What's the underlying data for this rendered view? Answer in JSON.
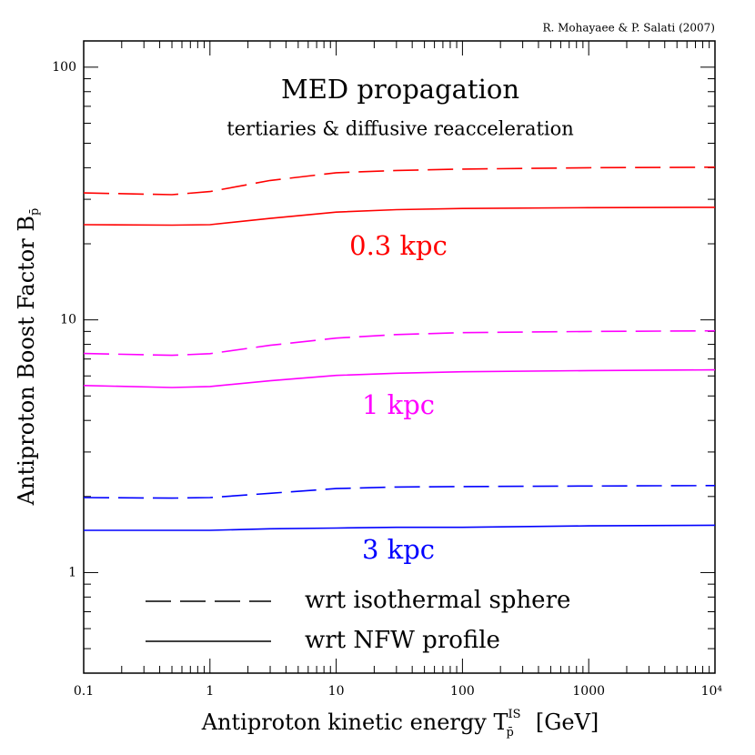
{
  "chart_data": {
    "type": "line",
    "credit": "R. Mohayaee & P. Salati (2007)",
    "title": "MED propagation",
    "subtitle": "tertiaries & diffusive reacceleration",
    "xlabel": [
      "Antiproton kinetic energy T",
      "IS",
      "p̄",
      "[GeV]"
    ],
    "ylabel": [
      "Antiproton Boost Factor B",
      "p̄"
    ],
    "xlog": true,
    "ylog": true,
    "xlim": [
      0.1,
      10000
    ],
    "ylim": [
      0.4,
      127
    ],
    "xticks": [
      0.1,
      1,
      10,
      100,
      1000,
      {
        "value": 10000,
        "label": "10⁴"
      }
    ],
    "yticks": [
      1,
      10,
      100
    ],
    "x": [
      0.1,
      0.5,
      1,
      3,
      10,
      30,
      100,
      1000,
      10000
    ],
    "series": [
      {
        "color": "#ff0000",
        "dashed": true,
        "values": [
          31.8,
          31.3,
          32.2,
          35.6,
          38.2,
          39.0,
          39.5,
          40.0,
          40.2
        ]
      },
      {
        "color": "#ff0000",
        "dashed": false,
        "values": [
          23.8,
          23.7,
          23.8,
          25.2,
          26.7,
          27.3,
          27.6,
          27.8,
          27.9
        ]
      },
      {
        "color": "#ff00ff",
        "dashed": true,
        "values": [
          7.36,
          7.24,
          7.35,
          7.93,
          8.47,
          8.75,
          8.9,
          9.0,
          9.05
        ]
      },
      {
        "color": "#ff00ff",
        "dashed": false,
        "values": [
          5.5,
          5.4,
          5.45,
          5.74,
          6.03,
          6.15,
          6.23,
          6.3,
          6.34
        ]
      },
      {
        "color": "#0000ff",
        "dashed": true,
        "values": [
          1.98,
          1.97,
          1.98,
          2.06,
          2.15,
          2.18,
          2.19,
          2.2,
          2.21
        ]
      },
      {
        "color": "#0000ff",
        "dashed": false,
        "values": [
          1.47,
          1.47,
          1.47,
          1.49,
          1.5,
          1.51,
          1.51,
          1.53,
          1.54
        ]
      }
    ],
    "annotations": [
      {
        "text": "0.3 kpc",
        "color": "#ff0000"
      },
      {
        "text": "1 kpc",
        "color": "#ff00ff"
      },
      {
        "text": "3 kpc",
        "color": "#0000ff"
      }
    ],
    "legend": [
      {
        "label": "wrt isothermal sphere",
        "dashed": true
      },
      {
        "label": "wrt NFW profile",
        "dashed": false
      }
    ]
  }
}
